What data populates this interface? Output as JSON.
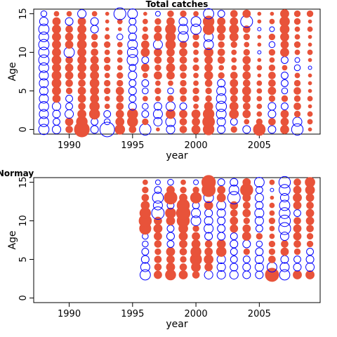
{
  "colors": {
    "positive": "#E8533A",
    "negative": "#0000FF",
    "axis": "#000000"
  },
  "chart_data": [
    {
      "type": "scatter",
      "subtype": "bubble",
      "title": "Total catches",
      "xlabel": "year",
      "ylabel": "Age",
      "xlim": [
        1987.2,
        2009.8
      ],
      "ylim": [
        -0.6,
        15.6
      ],
      "xticks": [
        1990,
        1995,
        2000,
        2005
      ],
      "yticks": [
        0,
        5,
        10,
        15
      ],
      "grid": false,
      "years": [
        1988,
        1989,
        1990,
        1991,
        1992,
        1993,
        1994,
        1995,
        1996,
        1997,
        1998,
        1999,
        2000,
        2001,
        2002,
        2003,
        2004,
        2005,
        2006,
        2007,
        2008,
        2009
      ],
      "ages": [
        0,
        1,
        2,
        3,
        4,
        5,
        6,
        7,
        8,
        9,
        10,
        11,
        12,
        13,
        14,
        15
      ],
      "residuals": [
        [
          -0.9,
          -0.8,
          -0.7,
          -0.8,
          -0.7,
          -0.6,
          -0.7,
          -0.7,
          -0.8,
          -0.9,
          -0.9,
          -0.9,
          -0.8,
          -0.9,
          -0.6,
          -0.3
        ],
        [
          -0.6,
          -0.4,
          -0.5,
          -0.6,
          0.5,
          0.6,
          0.7,
          0.7,
          0.6,
          0.7,
          0.6,
          0.6,
          0.6,
          0.6,
          0.5,
          0.2
        ],
        [
          0.4,
          0.5,
          -0.6,
          -0.4,
          -0.4,
          0.3,
          0.4,
          0.5,
          0.5,
          0.4,
          -0.9,
          0.5,
          0.5,
          0.4,
          -0.5,
          0.2
        ],
        [
          1.9,
          1.0,
          0.6,
          0.4,
          0.5,
          0.5,
          0.4,
          0.5,
          0.6,
          0.6,
          0.6,
          0.7,
          0.6,
          0.6,
          0.5,
          -0.6
        ],
        [
          -0.5,
          -0.4,
          0.9,
          0.8,
          0.6,
          0.6,
          0.7,
          0.6,
          0.6,
          0.5,
          0.4,
          0.3,
          0.3,
          -0.5,
          -0.5,
          0.2
        ],
        [
          -1.8,
          -0.3,
          -0.4,
          0.2,
          0.2,
          0.3,
          0.3,
          0.2,
          0.3,
          0.3,
          0.2,
          0.3,
          0.2,
          0.1,
          0.1,
          0.1
        ],
        [
          0.8,
          0.6,
          0.5,
          0.4,
          0.4,
          0.5,
          0.3,
          0.3,
          0.2,
          0.2,
          0.2,
          0.2,
          -0.3,
          0.1,
          0.2,
          -1.2
        ],
        [
          0.4,
          0.9,
          0.9,
          -0.5,
          -0.4,
          -0.5,
          -0.4,
          -0.6,
          -0.4,
          -1.0,
          -0.9,
          -0.8,
          -0.5,
          -0.6,
          -0.4,
          -0.8
        ],
        [
          -1.1,
          0.3,
          -0.4,
          -0.3,
          0.2,
          -0.3,
          -0.4,
          0.2,
          0.5,
          -0.4,
          0.6,
          0.5,
          0.3,
          0.2,
          0.2,
          0.1
        ],
        [
          0.1,
          -0.6,
          -0.7,
          -0.5,
          0.2,
          0.3,
          0.2,
          0.5,
          0.3,
          0.4,
          0.5,
          -0.7,
          0.5,
          0.4,
          0.3,
          -0.2
        ],
        [
          -0.6,
          -0.8,
          0.7,
          -0.7,
          0.3,
          -0.3,
          0.2,
          0.5,
          0.6,
          0.4,
          0.5,
          0.8,
          0.8,
          0.9,
          0.5,
          0.3
        ],
        [
          0.4,
          0.4,
          0.5,
          -0.4,
          0.3,
          0.4,
          0.3,
          0.3,
          0.4,
          0.4,
          0.5,
          0.4,
          -0.9,
          -0.8,
          -0.6,
          0.3
        ],
        [
          0.6,
          0.5,
          0.6,
          0.2,
          0.3,
          0.3,
          0.2,
          0.2,
          0.3,
          0.2,
          0.2,
          0.3,
          0.3,
          -0.9,
          -0.8,
          0.2
        ],
        [
          1.0,
          1.2,
          1.0,
          0.6,
          0.3,
          0.3,
          0.4,
          0.6,
          0.5,
          0.5,
          0.7,
          -0.8,
          -0.7,
          1.0,
          1.0,
          -0.9
        ],
        [
          -0.5,
          -0.6,
          -0.8,
          -0.9,
          -0.8,
          -0.7,
          -0.5,
          0.3,
          0.2,
          0.4,
          0.4,
          0.3,
          0.4,
          0.6,
          0.5,
          -0.4
        ],
        [
          0.3,
          -0.4,
          0.7,
          0.6,
          0.4,
          0.5,
          0.5,
          0.4,
          0.2,
          0.2,
          0.2,
          0.3,
          0.6,
          0.7,
          0.5,
          0.4
        ],
        [
          -0.5,
          0.2,
          0.5,
          0.4,
          0.5,
          0.6,
          0.4,
          0.5,
          0.4,
          0.5,
          0.3,
          0.2,
          0.3,
          0.4,
          -1.2,
          0.5
        ],
        [
          1.2,
          0.3,
          0.2,
          0.2,
          0.2,
          0.2,
          0.2,
          0.1,
          0.2,
          0.1,
          -0.1,
          0.1,
          0.1,
          -0.1,
          0.1,
          0.1
        ],
        [
          -0.5,
          0.4,
          -0.5,
          -0.5,
          0.3,
          0.5,
          0.4,
          0.4,
          0.3,
          0.2,
          0.3,
          -0.3,
          0.3,
          -0.2,
          0.2,
          0.1
        ],
        [
          0.6,
          0.5,
          0.5,
          -0.4,
          0.3,
          -0.3,
          -0.4,
          -0.4,
          0.2,
          -0.4,
          0.6,
          0.5,
          0.6,
          0.7,
          0.8,
          0.6
        ],
        [
          -1.1,
          -0.7,
          0.3,
          0.4,
          0.3,
          0.4,
          0.3,
          0.2,
          -0.3,
          -0.2,
          0.2,
          0.3,
          0.2,
          0.2,
          0.3,
          0.3
        ],
        [
          0.1,
          0.2,
          0.2,
          0.1,
          0.2,
          0.1,
          0.1,
          0.1,
          -0.1,
          0.1,
          0.2,
          0.1,
          0.1,
          0.2,
          0.1,
          0.3
        ]
      ]
    },
    {
      "type": "scatter",
      "subtype": "bubble",
      "title": "Normay",
      "xlabel": "year",
      "ylabel": "Age",
      "xlim": [
        1987.2,
        2009.8
      ],
      "ylim": [
        -0.6,
        15.6
      ],
      "xticks": [
        1990,
        1995,
        2000,
        2005
      ],
      "yticks": [
        0,
        5,
        10,
        15
      ],
      "grid": false,
      "years": [
        1996,
        1997,
        1998,
        1999,
        2000,
        2001,
        2002,
        2003,
        2004,
        2005,
        2006,
        2007,
        2008,
        2009
      ],
      "ages": [
        3,
        4,
        5,
        6,
        7,
        8,
        9,
        10,
        11,
        12,
        13,
        14,
        15
      ],
      "residuals": [
        [
          -0.9,
          -0.7,
          -0.5,
          -0.4,
          -0.3,
          -0.3,
          1.1,
          1.3,
          1.0,
          0.6,
          0.4,
          0.3,
          0.2
        ],
        [
          0.5,
          0.4,
          0.4,
          0.3,
          0.4,
          0.5,
          0.6,
          0.5,
          -1.3,
          -0.7,
          -1.0,
          -0.4,
          -0.2
        ],
        [
          0.9,
          0.6,
          0.5,
          0.6,
          -0.4,
          -0.5,
          -0.4,
          0.6,
          0.9,
          -0.4,
          1.4,
          0.5,
          -0.3
        ],
        [
          0.6,
          0.4,
          0.3,
          0.4,
          0.5,
          0.6,
          0.7,
          1.3,
          1.6,
          1.3,
          0.5,
          0.3,
          0.2
        ],
        [
          0.4,
          0.7,
          1.1,
          0.9,
          0.6,
          0.5,
          0.3,
          -0.8,
          -0.7,
          -0.4,
          1.0,
          0.3,
          -0.2
        ],
        [
          -0.6,
          0.5,
          0.7,
          0.5,
          0.4,
          -0.5,
          -0.7,
          -0.6,
          -0.5,
          0.6,
          -0.8,
          1.5,
          1.6
        ],
        [
          -0.6,
          -0.6,
          -0.6,
          0.8,
          0.6,
          -0.5,
          -0.5,
          -0.5,
          -0.6,
          -0.7,
          0.6,
          0.5,
          -0.4
        ],
        [
          -0.6,
          -0.5,
          -0.4,
          -0.4,
          -0.5,
          -0.4,
          0.5,
          0.5,
          0.4,
          0.5,
          -1.3,
          -0.8,
          -0.5
        ],
        [
          -0.5,
          -0.5,
          -0.4,
          0.3,
          -0.5,
          0.6,
          0.5,
          0.3,
          0.5,
          0.4,
          0.5,
          1.3,
          0.5
        ],
        [
          -0.5,
          -0.6,
          -0.6,
          -0.5,
          -0.3,
          0.3,
          -0.4,
          -0.6,
          -0.7,
          -0.5,
          -0.6,
          -0.4,
          -0.8
        ],
        [
          1.5,
          -0.8,
          0.4,
          0.3,
          0.3,
          0.2,
          0.2,
          0.3,
          0.2,
          0.2,
          0.1,
          -0.1,
          0.2
        ],
        [
          -0.9,
          -0.7,
          -0.5,
          0.5,
          0.4,
          -0.6,
          -1.2,
          -1.1,
          -1.0,
          -0.9,
          -0.6,
          -1.0,
          -1.1
        ],
        [
          0.6,
          -0.5,
          -0.4,
          0.3,
          0.4,
          0.5,
          0.5,
          0.4,
          -0.4,
          0.5,
          0.6,
          0.5,
          0.4
        ],
        [
          0.6,
          -0.6,
          -0.5,
          -0.4,
          0.3,
          0.3,
          0.4,
          0.5,
          0.5,
          0.4,
          0.5,
          0.7,
          0.8
        ]
      ]
    }
  ]
}
